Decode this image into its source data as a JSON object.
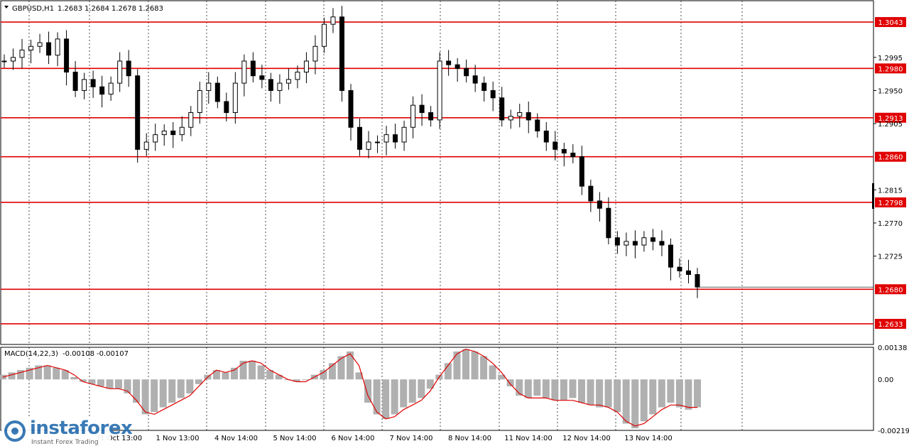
{
  "window": {
    "symbol_header": "GBPUSD,H1",
    "ohlc": [
      "1.2683",
      "1.2684",
      "1.2678",
      "1.2683"
    ]
  },
  "colors": {
    "level": "#e00000",
    "candle": "#000000",
    "grid": "#000000",
    "macd_signal": "#e00000",
    "macd_hist": "#b0b0b0"
  },
  "chart_data": [
    {
      "type": "candlestick",
      "title": "GBPUSD,H1",
      "ylim": [
        1.2605,
        1.3072
      ],
      "y_ticks": [
        "1.2995",
        "1.2950",
        "1.2905",
        "1.2815",
        "1.2770",
        "1.2725"
      ],
      "x_ticks": [
        "31 Oct 13:00",
        "1 Nov 13:00",
        "4 Nov 14:00",
        "5 Nov 14:00",
        "6 Nov 14:00",
        "7 Nov 14:00",
        "8 Nov 14:00",
        "11 Nov 14:00",
        "12 Nov 14:00",
        "13 Nov 14:00"
      ],
      "levels": [
        "1.3043",
        "1.2980",
        "1.2913",
        "1.2860",
        "1.2798",
        "1.2680",
        "1.2633"
      ],
      "current_price": 1.2683,
      "close_series": [
        1.299,
        1.2995,
        1.3005,
        1.301,
        1.3015,
        1.2998,
        1.302,
        1.2975,
        1.295,
        1.2965,
        1.2955,
        1.2945,
        1.296,
        1.299,
        1.297,
        1.287,
        1.288,
        1.289,
        1.2895,
        1.289,
        1.29,
        1.292,
        1.295,
        1.296,
        1.2935,
        1.292,
        1.296,
        1.299,
        1.297,
        1.2965,
        1.295,
        1.296,
        1.2965,
        1.2975,
        1.299,
        1.301,
        1.304,
        1.305,
        1.295,
        1.29,
        1.287,
        1.288,
        1.288,
        1.289,
        1.288,
        1.29,
        1.293,
        1.292,
        1.291,
        1.299,
        1.2985,
        1.298,
        1.297,
        1.296,
        1.295,
        1.294,
        1.291,
        1.2915,
        1.292,
        1.291,
        1.2895,
        1.288,
        1.287,
        1.2865,
        1.286,
        1.282,
        1.28,
        1.279,
        1.275,
        1.274,
        1.2745,
        1.274,
        1.275,
        1.2745,
        1.274,
        1.271,
        1.2705,
        1.27,
        1.2683
      ]
    },
    {
      "type": "macd",
      "title": "MACD(14,22,3)",
      "values": [
        "-0.00108",
        "-0.00107"
      ],
      "ylim": [
        -0.00219,
        0.00138
      ],
      "y_ticks": [
        "0.00138",
        "0.00",
        "-0.00219"
      ],
      "histogram": [
        0.0002,
        0.0003,
        0.0004,
        0.0005,
        0.0006,
        0.0006,
        0.0005,
        0.0004,
        0.0001,
        -0.0001,
        -0.0002,
        -0.0003,
        -0.0004,
        -0.0004,
        -0.0006,
        -0.001,
        -0.0015,
        -0.0014,
        -0.0012,
        -0.001,
        -0.0008,
        -0.0006,
        -0.0002,
        0.0002,
        0.0004,
        0.0003,
        0.0005,
        0.0008,
        0.0008,
        0.0006,
        0.0004,
        0.0002,
        0.0,
        -0.0001,
        0.0,
        0.0002,
        0.0004,
        0.0007,
        0.001,
        0.0012,
        0.0003,
        -0.001,
        -0.0015,
        -0.0017,
        -0.0015,
        -0.0012,
        -0.001,
        -0.0008,
        -0.0004,
        0.0002,
        0.0007,
        0.0012,
        0.0013,
        0.0012,
        0.001,
        0.0006,
        0.0002,
        -0.0003,
        -0.0007,
        -0.0008,
        -0.0007,
        -0.0008,
        -0.0009,
        -0.0009,
        -0.0008,
        -0.001,
        -0.0011,
        -0.0012,
        -0.0012,
        -0.0014,
        -0.0019,
        -0.0021,
        -0.0018,
        -0.0015,
        -0.0012,
        -0.001,
        -0.0012,
        -0.0013,
        -0.0012
      ],
      "signal": [
        0.0001,
        0.0002,
        0.0003,
        0.0004,
        0.0005,
        0.0006,
        0.0005,
        0.0004,
        0.0002,
        -0.0001,
        -0.0002,
        -0.0003,
        -0.0004,
        -0.0004,
        -0.0005,
        -0.0009,
        -0.0014,
        -0.0015,
        -0.0013,
        -0.0011,
        -0.0009,
        -0.0007,
        -0.0003,
        0.0001,
        0.0004,
        0.0003,
        0.0004,
        0.0007,
        0.0008,
        0.0007,
        0.0004,
        0.0002,
        0.0,
        -0.0001,
        -0.0001,
        0.0001,
        0.0003,
        0.0006,
        0.0009,
        0.0011,
        0.0006,
        -0.0007,
        -0.0014,
        -0.0017,
        -0.0016,
        -0.0013,
        -0.0011,
        -0.0009,
        -0.0005,
        0.0001,
        0.0006,
        0.0011,
        0.0013,
        0.0012,
        0.001,
        0.0007,
        0.0003,
        -0.0002,
        -0.0006,
        -0.0008,
        -0.0008,
        -0.0008,
        -0.0009,
        -0.0009,
        -0.0009,
        -0.001,
        -0.0011,
        -0.0011,
        -0.0012,
        -0.0014,
        -0.0018,
        -0.002,
        -0.0019,
        -0.0016,
        -0.0013,
        -0.0011,
        -0.0011,
        -0.0012,
        -0.0012
      ]
    }
  ],
  "watermark": {
    "name": "instaforex",
    "tagline": "Instant Forex Trading"
  }
}
